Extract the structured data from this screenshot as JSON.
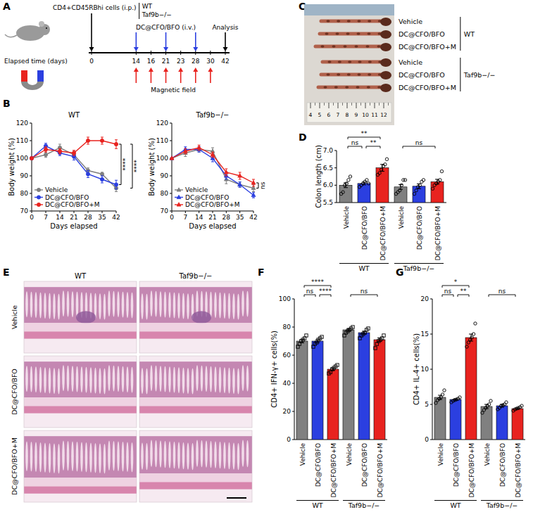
{
  "panel_letters": [
    "A",
    "B",
    "C",
    "D",
    "E",
    "F",
    "G"
  ],
  "diagram": {
    "cells": "CD4+CD45RBhi cells (i.p.)",
    "genotypes": [
      "WT",
      "Taf9b−/−"
    ],
    "treatment": "DC@CFO/BFO (i.v.)",
    "endpoint": "Analysis",
    "time_label": "Elapsed time (days)",
    "field_label": "Magnetic field",
    "days": [
      0,
      14,
      16,
      21,
      23,
      28,
      30,
      42
    ],
    "injection_days": [
      14,
      21,
      28
    ],
    "field_days": [
      14,
      16,
      21,
      23,
      28,
      30
    ]
  },
  "photo": {
    "labels": [
      "Vehicle",
      "DC@CFO/BFO",
      "DC@CFO/BFO+M",
      "Vehicle",
      "DC@CFO/BFO",
      "DC@CFO/BFO+M"
    ],
    "groups": [
      {
        "label": "WT",
        "rows": [
          0,
          1,
          2
        ]
      },
      {
        "label": "Taf9b−/−",
        "rows": [
          3,
          4,
          5
        ]
      }
    ],
    "ruler": [
      4,
      5,
      6,
      7,
      8,
      9,
      10,
      11,
      12
    ]
  },
  "histology": {
    "columns": [
      "WT",
      "Taf9b−/−"
    ],
    "rows": [
      "Vehicle",
      "DC@CFO/BFO",
      "DC@CFO/BFO+M"
    ]
  },
  "chart_data": [
    {
      "type": "line",
      "title": "WT",
      "x_label": "Days elapsed",
      "y_label": "Body weight (%)",
      "x": [
        0,
        7,
        14,
        21,
        28,
        35,
        42
      ],
      "xlim": [
        0,
        42
      ],
      "xticks": [
        0,
        7,
        14,
        21,
        28,
        35,
        42
      ],
      "ylim": [
        70,
        120
      ],
      "yticks": [
        70,
        80,
        90,
        100,
        110,
        120
      ],
      "legend": "lower left",
      "series": [
        {
          "name": "Vehicle",
          "color": "#808080",
          "marker": "circle",
          "values": [
            100,
            102,
            106,
            102,
            93,
            91,
            83
          ],
          "errors": [
            0,
            1.5,
            2,
            2,
            1.5,
            1,
            2
          ]
        },
        {
          "name": "DC@CFO/BFO",
          "color": "#2b3fe0",
          "marker": "circle",
          "values": [
            100,
            107,
            103,
            101,
            91,
            88,
            85
          ],
          "errors": [
            0,
            1.5,
            1.5,
            2,
            2,
            2,
            2.5
          ]
        },
        {
          "name": "DC@CFO/BFO+M",
          "color": "#e8231f",
          "marker": "circle",
          "values": [
            100,
            105,
            104,
            103,
            110,
            110,
            108
          ],
          "errors": [
            0,
            1.5,
            1.5,
            1.5,
            2,
            2,
            2.5
          ]
        }
      ],
      "annotations": [
        {
          "text": "****",
          "series": [
            1,
            2
          ]
        },
        {
          "text": "****",
          "series": [
            0,
            2
          ]
        }
      ]
    },
    {
      "type": "line",
      "title": "Taf9b−/−",
      "x_label": "Days elapsed",
      "y_label": "Body weight (%)",
      "x": [
        0,
        7,
        14,
        21,
        28,
        35,
        42
      ],
      "xlim": [
        0,
        42
      ],
      "xticks": [
        0,
        7,
        14,
        21,
        28,
        35,
        42
      ],
      "ylim": [
        70,
        120
      ],
      "yticks": [
        70,
        80,
        90,
        100,
        110,
        120
      ],
      "legend": "lower left",
      "series": [
        {
          "name": "Vehicle",
          "color": "#808080",
          "marker": "triangle",
          "values": [
            100,
            103,
            105,
            104,
            88,
            85,
            83
          ],
          "errors": [
            0,
            2,
            1.5,
            2,
            2.5,
            1.5,
            2
          ]
        },
        {
          "name": "DC@CFO/BFO",
          "color": "#2b3fe0",
          "marker": "triangle",
          "values": [
            100,
            105,
            105,
            100,
            90,
            85,
            79
          ],
          "errors": [
            0,
            1.5,
            1.5,
            2,
            2,
            1.5,
            1.5
          ]
        },
        {
          "name": "DC@CFO/BFO+M",
          "color": "#e8231f",
          "marker": "triangle",
          "values": [
            100,
            104,
            106,
            102,
            92,
            90,
            86
          ],
          "errors": [
            0,
            1.5,
            1.5,
            1.5,
            2,
            2,
            2
          ]
        }
      ],
      "annotations": [
        {
          "text": "ns",
          "series": [
            0,
            2
          ]
        }
      ]
    },
    {
      "type": "bar",
      "y_label": "Colon length (cm)",
      "categories": [
        "Vehicle",
        "DC@CFO/BFO",
        "DC@CFO/BFO+M",
        "Vehicle",
        "DC@CFO/BFO",
        "DC@CFO/BFO+M"
      ],
      "values": [
        6.0,
        6.05,
        6.5,
        5.95,
        5.97,
        6.1
      ],
      "errors": [
        0.07,
        0.04,
        0.1,
        0.07,
        0.07,
        0.07
      ],
      "points": [
        [
          5.75,
          5.8,
          6.0,
          6.05,
          6.15,
          6.25
        ],
        [
          5.95,
          6.0,
          6.05,
          6.1,
          6.15,
          6.05
        ],
        [
          6.3,
          6.35,
          6.45,
          6.55,
          6.6,
          6.75
        ],
        [
          5.75,
          5.8,
          5.85,
          6.0,
          6.15,
          6.15
        ],
        [
          5.75,
          5.85,
          5.95,
          6.0,
          6.1,
          6.15
        ],
        [
          5.9,
          6.0,
          6.05,
          6.1,
          6.15,
          6.4
        ]
      ],
      "colors": [
        "#808080",
        "#2b3fe0",
        "#e8231f",
        "#808080",
        "#2b3fe0",
        "#e8231f"
      ],
      "marker": "circle",
      "ylim": [
        5.5,
        7.0
      ],
      "yticks": [
        5.5,
        {
          "value": 6,
          "label": "6.0"
        },
        6.5,
        {
          "value": 7,
          "label": "7.0"
        }
      ],
      "groups": [
        {
          "label": "WT",
          "categories": [
            0,
            1,
            2
          ]
        },
        {
          "label": "Taf9b−/−",
          "categories": [
            3,
            4,
            5
          ]
        }
      ],
      "annotations": [
        {
          "text": "ns",
          "categories": [
            0,
            1
          ]
        },
        {
          "text": "**",
          "categories": [
            1,
            2
          ]
        },
        {
          "text": "**",
          "categories": [
            0,
            2
          ]
        },
        {
          "text": "ns",
          "categories": [
            3,
            5
          ]
        }
      ]
    },
    {
      "type": "bar",
      "y_label": "CD4+ IFN-γ+ cells(%)",
      "categories": [
        "Vehicle",
        "DC@CFO/BFO",
        "DC@CFO/BFO+M",
        "Vehicle",
        "DC@CFO/BFO",
        "DC@CFO/BFO+M"
      ],
      "values": [
        70,
        70,
        50,
        78,
        76,
        71
      ],
      "errors": [
        1.2,
        1.1,
        0.9,
        0.9,
        1.0,
        1.3
      ],
      "points": [
        [
          66,
          68,
          70,
          71,
          72,
          74
        ],
        [
          66,
          68,
          69,
          71,
          72,
          73
        ],
        [
          47,
          48,
          50,
          51,
          52,
          53
        ],
        [
          74,
          76,
          77,
          78,
          79,
          80
        ],
        [
          72,
          74,
          75,
          76,
          78,
          79
        ],
        [
          65,
          68,
          70,
          71,
          72,
          74
        ]
      ],
      "colors": [
        "#808080",
        "#2b3fe0",
        "#e8231f",
        "#808080",
        "#2b3fe0",
        "#e8231f"
      ],
      "marker": "square",
      "ylim": [
        0,
        100
      ],
      "yticks": [
        0,
        20,
        40,
        60,
        80,
        100
      ],
      "groups": [
        {
          "label": "WT",
          "categories": [
            0,
            1,
            2
          ]
        },
        {
          "label": "Taf9b−/−",
          "categories": [
            3,
            4,
            5
          ]
        }
      ],
      "annotations": [
        {
          "text": "ns",
          "categories": [
            0,
            1
          ]
        },
        {
          "text": "****",
          "categories": [
            1,
            2
          ]
        },
        {
          "text": "****",
          "categories": [
            0,
            2
          ]
        },
        {
          "text": "ns",
          "categories": [
            3,
            5
          ]
        }
      ]
    },
    {
      "type": "bar",
      "y_label": "CD4+ IL-4+ cells(%)",
      "categories": [
        "Vehicle",
        "DC@CFO/BFO",
        "DC@CFO/BFO+M",
        "Vehicle",
        "DC@CFO/BFO",
        "DC@CFO/BFO+M"
      ],
      "values": [
        6.0,
        5.7,
        14.5,
        4.7,
        4.8,
        4.4
      ],
      "errors": [
        0.3,
        0.1,
        0.5,
        0.3,
        0.2,
        0.1
      ],
      "points": [
        [
          5.2,
          5.6,
          5.8,
          6.0,
          6.4,
          7.0
        ],
        [
          5.3,
          5.5,
          5.6,
          5.7,
          5.8,
          6.0
        ],
        [
          13.2,
          13.8,
          14.2,
          14.5,
          15.0,
          16.5
        ],
        [
          3.8,
          4.2,
          4.5,
          4.8,
          5.0,
          5.5
        ],
        [
          4.3,
          4.5,
          4.8,
          4.9,
          5.0,
          5.3
        ],
        [
          4.1,
          4.3,
          4.4,
          4.5,
          4.6,
          4.8
        ]
      ],
      "colors": [
        "#808080",
        "#2b3fe0",
        "#e8231f",
        "#808080",
        "#2b3fe0",
        "#e8231f"
      ],
      "marker": "circle",
      "ylim": [
        0,
        20
      ],
      "yticks": [
        0,
        5,
        10,
        15,
        20
      ],
      "groups": [
        {
          "label": "WT",
          "categories": [
            0,
            1,
            2
          ]
        },
        {
          "label": "Taf9b−/−",
          "categories": [
            3,
            4,
            5
          ]
        }
      ],
      "annotations": [
        {
          "text": "ns",
          "categories": [
            0,
            1
          ]
        },
        {
          "text": "**",
          "categories": [
            1,
            2
          ]
        },
        {
          "text": "*",
          "categories": [
            0,
            2
          ]
        },
        {
          "text": "ns",
          "categories": [
            3,
            5
          ]
        }
      ]
    }
  ]
}
